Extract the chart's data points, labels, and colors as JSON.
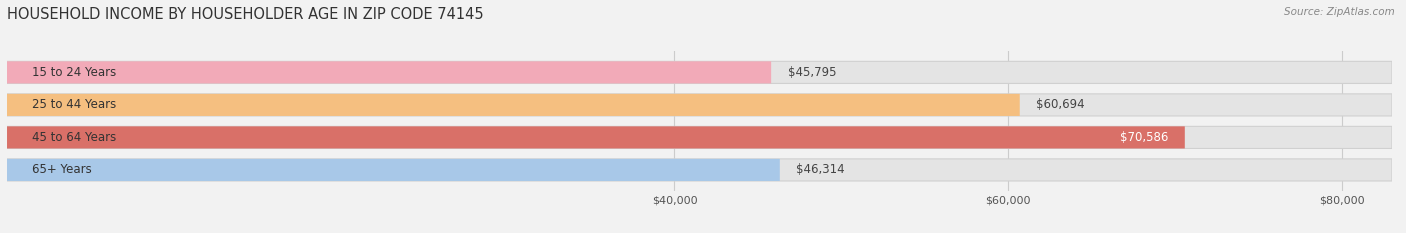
{
  "title": "HOUSEHOLD INCOME BY HOUSEHOLDER AGE IN ZIP CODE 74145",
  "source": "Source: ZipAtlas.com",
  "categories": [
    "15 to 24 Years",
    "25 to 44 Years",
    "45 to 64 Years",
    "65+ Years"
  ],
  "values": [
    45795,
    60694,
    70586,
    46314
  ],
  "bar_colors": [
    "#f2aab8",
    "#f5bf80",
    "#d97068",
    "#a8c8e8"
  ],
  "bar_edge_colors": [
    "#d890a0",
    "#e0a050",
    "#c05848",
    "#88a8d0"
  ],
  "value_labels": [
    "$45,795",
    "$60,694",
    "$70,586",
    "$46,314"
  ],
  "xmin": 0,
  "xmax": 83000,
  "xticks": [
    40000,
    60000,
    80000
  ],
  "xtick_labels": [
    "$40,000",
    "$60,000",
    "$80,000"
  ],
  "background_color": "#f2f2f2",
  "bar_bg_color": "#e4e4e4",
  "bar_bg_edge_color": "#d0d0d0",
  "title_fontsize": 10.5,
  "label_fontsize": 8.5,
  "tick_fontsize": 8,
  "value_inside_color": "#ffffff",
  "value_outside_color": "#444444",
  "label_color": "#333333"
}
